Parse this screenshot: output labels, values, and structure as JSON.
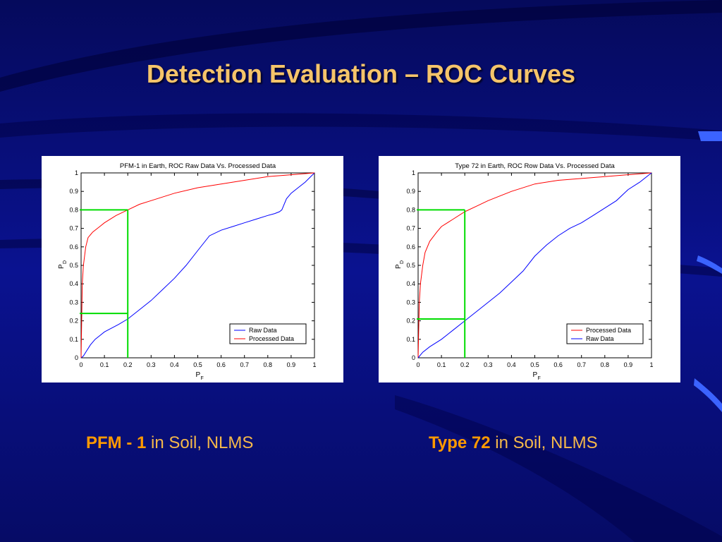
{
  "slide": {
    "title": "Detection Evaluation – ROC Curves",
    "captions": [
      {
        "strong": "PFM - 1",
        "rest": " in Soil, NLMS"
      },
      {
        "strong": "Type 72",
        "rest": " in Soil, NLMS"
      }
    ]
  },
  "colors": {
    "background": "#070d6e",
    "title": "#f5c46a",
    "caption_strong": "#ff9900",
    "caption": "#f5b84a",
    "marker": "#00dd00"
  },
  "chart_data": [
    {
      "type": "line",
      "title": "PFM-1 in Earth, ROC Raw Data Vs. Processed Data",
      "xlabel_main": "P",
      "xlabel_sub": "F",
      "ylabel_main": "P",
      "ylabel_sub": "D",
      "xlim": [
        0,
        1
      ],
      "ylim": [
        0,
        1
      ],
      "xticks": [
        "0",
        "0.1",
        "0.2",
        "0.3",
        "0.4",
        "0.5",
        "0.6",
        "0.7",
        "0.8",
        "0.9",
        "1"
      ],
      "yticks": [
        "0",
        "0.1",
        "0.2",
        "0.3",
        "0.4",
        "0.5",
        "0.6",
        "0.7",
        "0.8",
        "0.9",
        "1"
      ],
      "grid": false,
      "legend_position": "lower-right",
      "series": [
        {
          "name": "Raw Data",
          "color": "#0000ff",
          "x": [
            0,
            0.01,
            0.02,
            0.04,
            0.06,
            0.08,
            0.1,
            0.13,
            0.16,
            0.2,
            0.25,
            0.3,
            0.35,
            0.4,
            0.45,
            0.5,
            0.55,
            0.6,
            0.65,
            0.7,
            0.75,
            0.8,
            0.83,
            0.85,
            0.86,
            0.88,
            0.9,
            0.93,
            0.96,
            1
          ],
          "y": [
            0,
            0.01,
            0.03,
            0.07,
            0.1,
            0.12,
            0.14,
            0.16,
            0.18,
            0.21,
            0.26,
            0.31,
            0.37,
            0.43,
            0.5,
            0.58,
            0.66,
            0.69,
            0.71,
            0.73,
            0.75,
            0.77,
            0.78,
            0.79,
            0.8,
            0.86,
            0.89,
            0.92,
            0.95,
            1
          ]
        },
        {
          "name": "Processed Data",
          "color": "#ff0000",
          "x": [
            0,
            0.005,
            0.01,
            0.02,
            0.03,
            0.05,
            0.08,
            0.1,
            0.15,
            0.2,
            0.25,
            0.3,
            0.4,
            0.5,
            0.6,
            0.7,
            0.8,
            0.9,
            1
          ],
          "y": [
            0,
            0.4,
            0.5,
            0.6,
            0.65,
            0.68,
            0.71,
            0.73,
            0.77,
            0.8,
            0.83,
            0.85,
            0.89,
            0.92,
            0.94,
            0.96,
            0.98,
            0.99,
            1
          ]
        }
      ],
      "markers": [
        {
          "type": "h",
          "x0": 0,
          "x1": 0.2,
          "y": 0.8
        },
        {
          "type": "h",
          "x0": 0,
          "x1": 0.2,
          "y": 0.24
        },
        {
          "type": "v",
          "x": 0.2,
          "y0": 0,
          "y1": 0.8
        }
      ]
    },
    {
      "type": "line",
      "title": "Type 72 in Earth, ROC Row Data Vs. Processed Data",
      "xlabel_main": "P",
      "xlabel_sub": "F",
      "ylabel_main": "P",
      "ylabel_sub": "D",
      "xlim": [
        0,
        1
      ],
      "ylim": [
        0,
        1
      ],
      "xticks": [
        "0",
        "0.1",
        "0.2",
        "0.3",
        "0.4",
        "0.5",
        "0.6",
        "0.7",
        "0.8",
        "0.9",
        "1"
      ],
      "yticks": [
        "0",
        "0.1",
        "0.2",
        "0.3",
        "0.4",
        "0.5",
        "0.6",
        "0.7",
        "0.8",
        "0.9",
        "1"
      ],
      "grid": false,
      "legend_position": "lower-right",
      "series": [
        {
          "name": "Processed Data",
          "color": "#ff0000",
          "x": [
            0,
            0.005,
            0.01,
            0.02,
            0.03,
            0.05,
            0.08,
            0.1,
            0.15,
            0.2,
            0.25,
            0.3,
            0.4,
            0.5,
            0.6,
            0.7,
            0.8,
            0.9,
            1
          ],
          "y": [
            0,
            0.3,
            0.4,
            0.5,
            0.57,
            0.63,
            0.68,
            0.71,
            0.75,
            0.79,
            0.82,
            0.85,
            0.9,
            0.94,
            0.96,
            0.97,
            0.98,
            0.99,
            1
          ]
        },
        {
          "name": "Raw Data",
          "color": "#0000ff",
          "x": [
            0,
            0.02,
            0.05,
            0.1,
            0.15,
            0.2,
            0.25,
            0.3,
            0.35,
            0.4,
            0.45,
            0.5,
            0.55,
            0.6,
            0.65,
            0.7,
            0.75,
            0.8,
            0.85,
            0.9,
            0.95,
            1
          ],
          "y": [
            0,
            0.03,
            0.06,
            0.1,
            0.15,
            0.2,
            0.25,
            0.3,
            0.35,
            0.41,
            0.47,
            0.55,
            0.61,
            0.66,
            0.7,
            0.73,
            0.77,
            0.81,
            0.85,
            0.91,
            0.95,
            1
          ]
        }
      ],
      "markers": [
        {
          "type": "h",
          "x0": 0,
          "x1": 0.2,
          "y": 0.8
        },
        {
          "type": "h",
          "x0": 0,
          "x1": 0.2,
          "y": 0.21
        },
        {
          "type": "v",
          "x": 0.2,
          "y0": 0,
          "y1": 0.8
        }
      ]
    }
  ]
}
